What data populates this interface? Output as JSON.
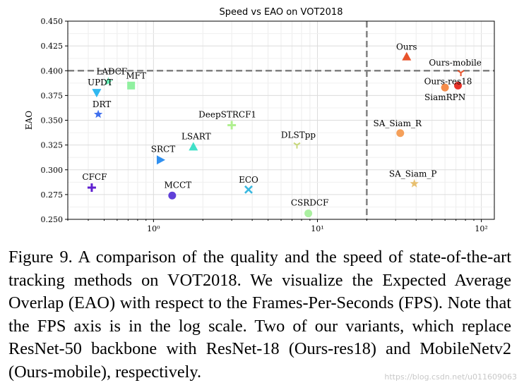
{
  "chart_data": {
    "type": "scatter",
    "title": "Speed vs EAO on VOT2018",
    "xlabel": "",
    "ylabel": "EAO",
    "xscale": "log",
    "xlim": [
      0.3,
      120
    ],
    "ylim": [
      0.25,
      0.45
    ],
    "xticks": [
      1,
      10,
      100
    ],
    "xtick_labels": [
      "10⁰",
      "10¹",
      "10²"
    ],
    "yticks": [
      0.25,
      0.275,
      0.3,
      0.325,
      0.35,
      0.375,
      0.4,
      0.425,
      0.45
    ],
    "ytick_labels": [
      "0.250",
      "0.275",
      "0.300",
      "0.325",
      "0.350",
      "0.375",
      "0.400",
      "0.425",
      "0.450"
    ],
    "grid": true,
    "reference_lines": {
      "eao": 0.4,
      "fps": 20
    },
    "points": [
      {
        "name": "Ours",
        "fps": 35,
        "eao": 0.414,
        "marker": "triangle-up",
        "color": "#e8532c"
      },
      {
        "name": "Ours-mobile",
        "fps": 75,
        "eao": 0.398,
        "marker": "tri-down",
        "color": "#e8532c"
      },
      {
        "name": "Ours-res18",
        "fps": 72,
        "eao": 0.385,
        "marker": "circle",
        "color": "#e8332a"
      },
      {
        "name": "SiamRPN",
        "fps": 60,
        "eao": 0.383,
        "marker": "circle",
        "color": "#f58c4a"
      },
      {
        "name": "SA_Siam_R",
        "fps": 32,
        "eao": 0.337,
        "marker": "circle",
        "color": "#f5a05a"
      },
      {
        "name": "SA_Siam_P",
        "fps": 39,
        "eao": 0.286,
        "marker": "star",
        "color": "#e8c070"
      },
      {
        "name": "DLSTpp",
        "fps": 7.5,
        "eao": 0.325,
        "marker": "tri-down",
        "color": "#c8d87c"
      },
      {
        "name": "CSRDCF",
        "fps": 8.8,
        "eao": 0.256,
        "marker": "circle",
        "color": "#aaf0a0"
      },
      {
        "name": "DeepSTRCF1",
        "fps": 3.0,
        "eao": 0.345,
        "marker": "plus",
        "color": "#b0f090"
      },
      {
        "name": "ECO",
        "fps": 3.8,
        "eao": 0.28,
        "marker": "x",
        "color": "#38b8e0"
      },
      {
        "name": "LSART",
        "fps": 1.75,
        "eao": 0.323,
        "marker": "triangle-up",
        "color": "#40e0c8"
      },
      {
        "name": "MFT",
        "fps": 0.73,
        "eao": 0.385,
        "marker": "square",
        "color": "#90f0a0"
      },
      {
        "name": "LADCF",
        "fps": 0.53,
        "eao": 0.389,
        "marker": "star",
        "color": "#60e8b0"
      },
      {
        "name": "UPDT",
        "fps": 0.45,
        "eao": 0.378,
        "marker": "triangle-down",
        "color": "#30b8f0"
      },
      {
        "name": "DRT",
        "fps": 0.46,
        "eao": 0.356,
        "marker": "star",
        "color": "#4070ee"
      },
      {
        "name": "SRCT",
        "fps": 1.1,
        "eao": 0.31,
        "marker": "triangle-right",
        "color": "#3090f0"
      },
      {
        "name": "MCCT",
        "fps": 1.3,
        "eao": 0.274,
        "marker": "circle",
        "color": "#6040d8"
      },
      {
        "name": "CFCF",
        "fps": 0.42,
        "eao": 0.282,
        "marker": "plus",
        "color": "#6020d0"
      }
    ]
  },
  "caption": "Figure 9. A comparison of the quality and the speed of state-of-the-art tracking methods on VOT2018. We visualize the Expected Average Overlap (EAO) with respect to the Frames-Per-Seconds (FPS). Note that the FPS axis is in the log scale. Two of our variants, which replace ResNet-50 backbone with ResNet-18 (Ours-res18) and MobileNetv2 (Ours-mobile), respectively.",
  "watermark": "https://blog.csdn.net/u011609063"
}
